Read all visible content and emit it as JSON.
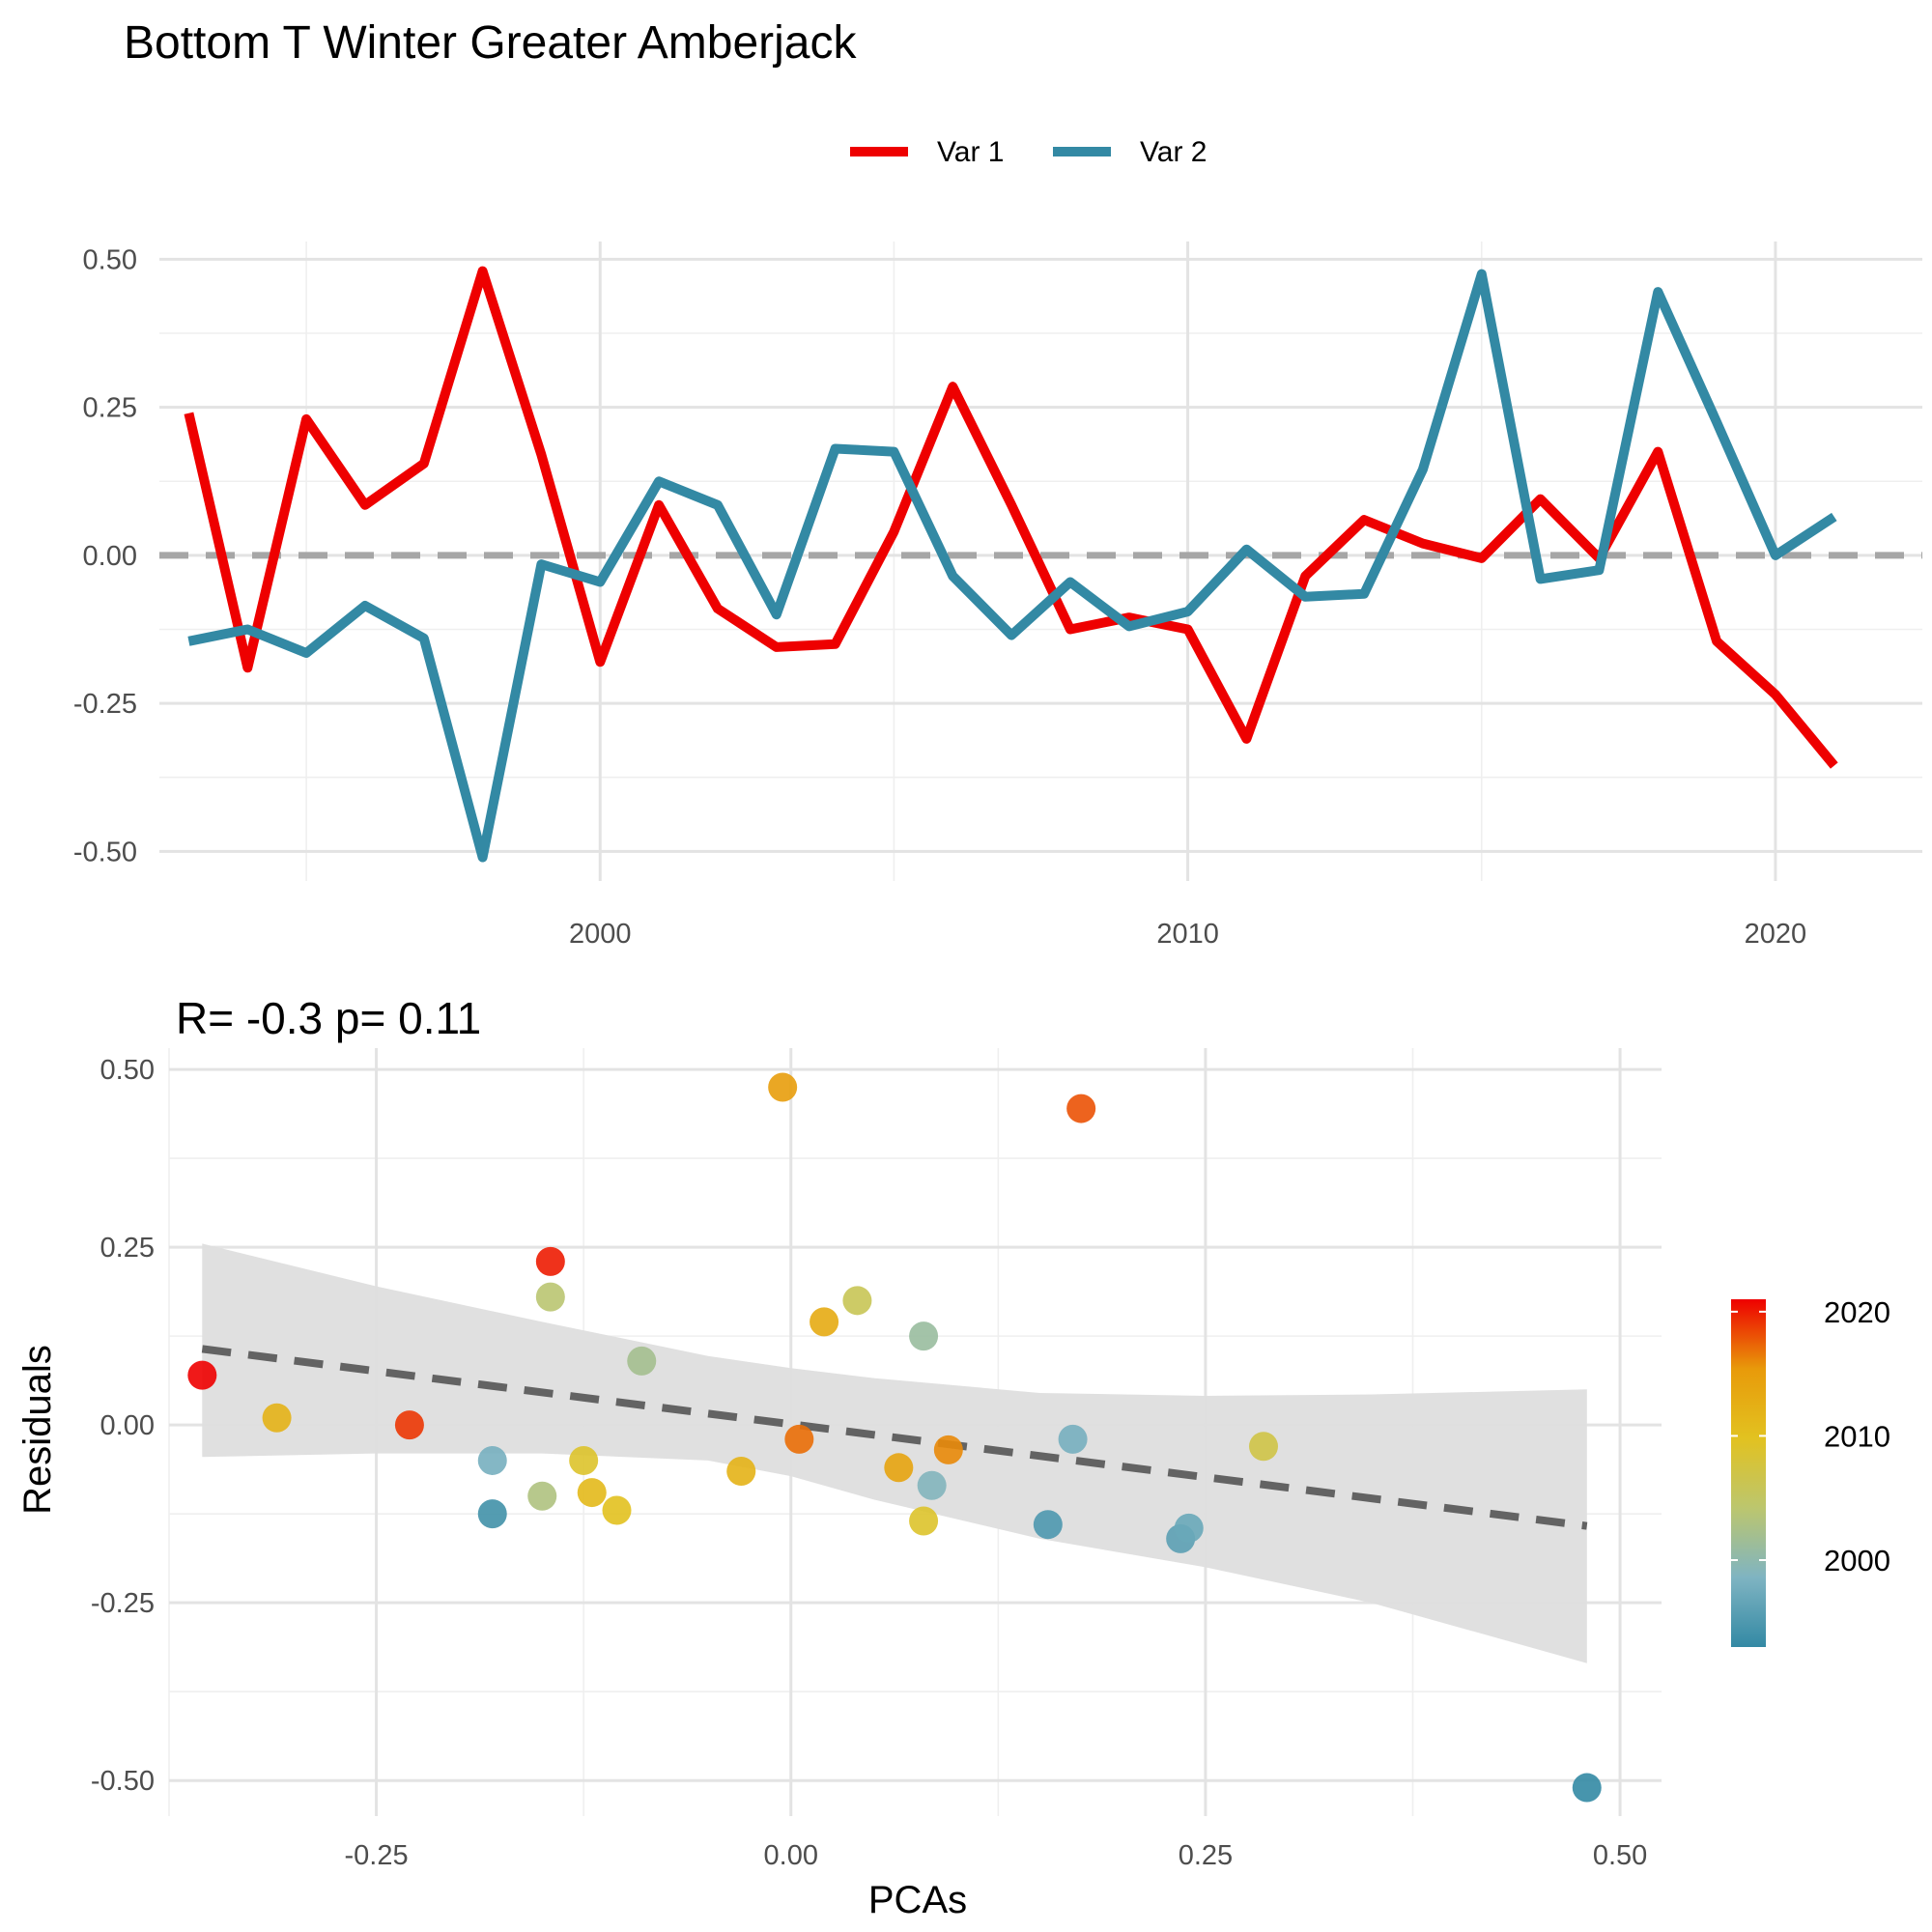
{
  "title": "Bottom T Winter Greater Amberjack",
  "colors": {
    "var1": "#ee0000",
    "var2": "#3389a4",
    "zero_line": "#a6a6a6",
    "fit_line": "#636363",
    "ribbon": "#dedede",
    "gradient": [
      "#3389a4",
      "#7fb4c2",
      "#bcc66e",
      "#e2c220",
      "#e89a0a",
      "#ee0000"
    ]
  },
  "chart_data": [
    {
      "type": "line",
      "title": "",
      "xlabel": "",
      "ylabel": "",
      "legend": {
        "position": "top",
        "entries": [
          "Var 1",
          "Var 2"
        ]
      },
      "xlim": [
        1992.5,
        2022.5
      ],
      "ylim": [
        -0.55,
        0.53
      ],
      "x_ticks": [
        2000,
        2010,
        2020
      ],
      "x_minor_ticks": [
        1995,
        2005,
        2015
      ],
      "y_ticks": [
        -0.5,
        -0.25,
        0,
        0.25,
        0.5
      ],
      "y_tick_labels": [
        "-0.50",
        "-0.25",
        "0.00",
        "0.25",
        "0.50"
      ],
      "grid": true,
      "reference_line": {
        "y": 0,
        "style": "dashed"
      },
      "x": [
        1993,
        1994,
        1995,
        1996,
        1997,
        1998,
        1999,
        2000,
        2001,
        2002,
        2003,
        2004,
        2005,
        2006,
        2007,
        2008,
        2009,
        2010,
        2011,
        2012,
        2013,
        2014,
        2015,
        2016,
        2017,
        2018,
        2019,
        2020,
        2021
      ],
      "series": [
        {
          "name": "Var 1",
          "values": [
            0.24,
            -0.19,
            0.23,
            0.085,
            0.155,
            0.48,
            0.17,
            -0.18,
            0.085,
            -0.09,
            -0.155,
            -0.15,
            0.04,
            0.285,
            0.085,
            -0.125,
            -0.105,
            -0.125,
            -0.31,
            -0.035,
            0.06,
            0.02,
            -0.005,
            0.095,
            -0.005,
            0.175,
            -0.145,
            -0.235,
            -0.355
          ]
        },
        {
          "name": "Var 2",
          "values": [
            -0.145,
            -0.125,
            -0.165,
            -0.085,
            -0.14,
            -0.51,
            -0.015,
            -0.045,
            0.125,
            0.085,
            -0.1,
            0.18,
            0.175,
            -0.035,
            -0.135,
            -0.045,
            -0.12,
            -0.095,
            0.01,
            -0.07,
            -0.065,
            0.145,
            0.475,
            -0.04,
            -0.025,
            0.445,
            0.225,
            0.0,
            0.065
          ]
        }
      ]
    },
    {
      "type": "scatter",
      "title": "R= -0.3  p= 0.11",
      "xlabel": "PCAs",
      "ylabel": "Residuals",
      "xlim": [
        -0.375,
        0.525
      ],
      "ylim": [
        -0.55,
        0.53
      ],
      "x_ticks": [
        -0.25,
        0,
        0.25,
        0.5
      ],
      "x_tick_labels": [
        "-0.25",
        "0.00",
        "0.25",
        "0.50"
      ],
      "y_ticks": [
        -0.5,
        -0.25,
        0,
        0.25,
        0.5
      ],
      "y_tick_labels": [
        "-0.50",
        "-0.25",
        "0.00",
        "0.25",
        "0.50"
      ],
      "grid": true,
      "color_scale": {
        "min": 1993,
        "max": 2021,
        "ticks": [
          2000,
          2010,
          2020
        ],
        "position": "right"
      },
      "trend_line": {
        "x": [
          -0.355,
          0.48
        ],
        "y": [
          0.107,
          -0.142
        ],
        "style": "dashed"
      },
      "ribbon": {
        "x": [
          -0.355,
          -0.25,
          -0.15,
          -0.05,
          0.0,
          0.05,
          0.15,
          0.25,
          0.35,
          0.48
        ],
        "upper": [
          0.255,
          0.195,
          0.145,
          0.097,
          0.08,
          0.066,
          0.045,
          0.041,
          0.043,
          0.05
        ],
        "lower": [
          -0.045,
          -0.04,
          -0.04,
          -0.05,
          -0.072,
          -0.105,
          -0.16,
          -0.2,
          -0.25,
          -0.335
        ]
      },
      "points": [
        {
          "x": -0.355,
          "y": 0.07,
          "year": 2021
        },
        {
          "x": -0.31,
          "y": 0.01,
          "year": 2012
        },
        {
          "x": -0.23,
          "y": 0.0,
          "year": 2019
        },
        {
          "x": -0.18,
          "y": -0.05,
          "year": 1998
        },
        {
          "x": -0.18,
          "y": -0.125,
          "year": 1994
        },
        {
          "x": -0.145,
          "y": 0.23,
          "year": 2020
        },
        {
          "x": -0.145,
          "y": 0.18,
          "year": 2004
        },
        {
          "x": -0.15,
          "y": -0.1,
          "year": 2003
        },
        {
          "x": -0.125,
          "y": -0.05,
          "year": 2009
        },
        {
          "x": -0.12,
          "y": -0.095,
          "year": 2011
        },
        {
          "x": -0.105,
          "y": -0.12,
          "year": 2010
        },
        {
          "x": -0.09,
          "y": 0.09,
          "year": 2002
        },
        {
          "x": -0.03,
          "y": -0.065,
          "year": 2012
        },
        {
          "x": -0.005,
          "y": 0.475,
          "year": 2015
        },
        {
          "x": 0.005,
          "y": -0.02,
          "year": 2017
        },
        {
          "x": 0.02,
          "y": 0.145,
          "year": 2013
        },
        {
          "x": 0.04,
          "y": 0.175,
          "year": 2006
        },
        {
          "x": 0.065,
          "y": -0.06,
          "year": 2014
        },
        {
          "x": 0.08,
          "y": 0.125,
          "year": 2001
        },
        {
          "x": 0.08,
          "y": -0.135,
          "year": 2009
        },
        {
          "x": 0.085,
          "y": -0.085,
          "year": 1999
        },
        {
          "x": 0.095,
          "y": -0.035,
          "year": 2016
        },
        {
          "x": 0.155,
          "y": -0.14,
          "year": 1995
        },
        {
          "x": 0.17,
          "y": -0.02,
          "year": 1998
        },
        {
          "x": 0.175,
          "y": 0.445,
          "year": 2018
        },
        {
          "x": 0.235,
          "y": -0.16,
          "year": 1996
        },
        {
          "x": 0.24,
          "y": -0.145,
          "year": 1997
        },
        {
          "x": 0.285,
          "y": -0.03,
          "year": 2007
        },
        {
          "x": 0.48,
          "y": -0.51,
          "year": 1993
        }
      ]
    }
  ]
}
